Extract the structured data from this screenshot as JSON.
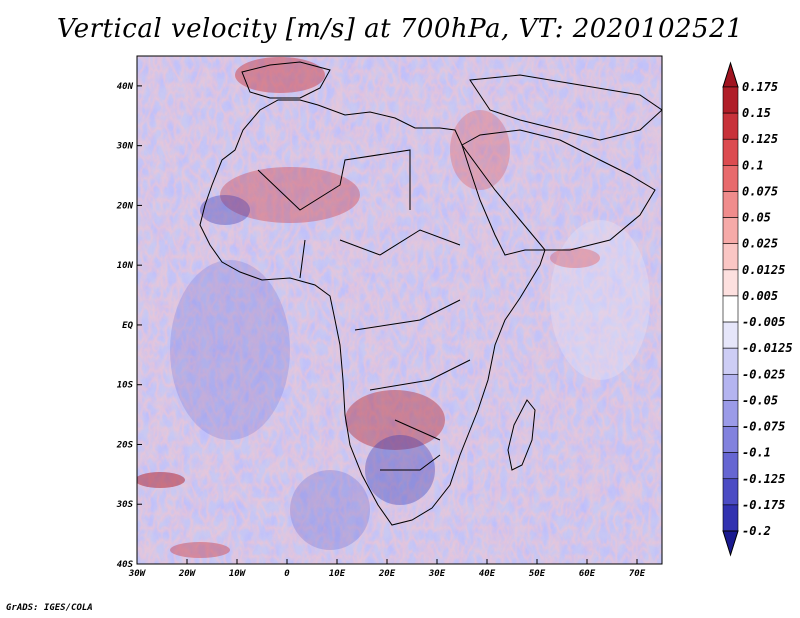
{
  "title": "Vertical velocity [m/s] at 700hPa, VT: 2020102521",
  "footer": "GrADS: IGES/COLA",
  "map": {
    "lon_range": [
      -30,
      75
    ],
    "lat_range": [
      -40,
      45
    ],
    "lon_ticks": [
      {
        "value": -30,
        "label": "30W"
      },
      {
        "value": -20,
        "label": "20W"
      },
      {
        "value": -10,
        "label": "10W"
      },
      {
        "value": 0,
        "label": "0"
      },
      {
        "value": 10,
        "label": "10E"
      },
      {
        "value": 20,
        "label": "20E"
      },
      {
        "value": 30,
        "label": "30E"
      },
      {
        "value": 40,
        "label": "40E"
      },
      {
        "value": 50,
        "label": "50E"
      },
      {
        "value": 60,
        "label": "60E"
      },
      {
        "value": 70,
        "label": "70E"
      }
    ],
    "lat_ticks": [
      {
        "value": 40,
        "label": "40N"
      },
      {
        "value": 30,
        "label": "30N"
      },
      {
        "value": 20,
        "label": "20N"
      },
      {
        "value": 10,
        "label": "10N"
      },
      {
        "value": 0,
        "label": "EQ"
      },
      {
        "value": -10,
        "label": "10S"
      },
      {
        "value": -20,
        "label": "20S"
      },
      {
        "value": -30,
        "label": "30S"
      },
      {
        "value": -40,
        "label": "40S"
      }
    ]
  },
  "colorbar": {
    "levels": [
      {
        "label": "0.175",
        "color": "#b01e28"
      },
      {
        "label": "0.15",
        "color": "#c8323a"
      },
      {
        "label": "0.125",
        "color": "#dc4b50"
      },
      {
        "label": "0.1",
        "color": "#e86a6c"
      },
      {
        "label": "0.075",
        "color": "#f08c8c"
      },
      {
        "label": "0.05",
        "color": "#f6aaa8"
      },
      {
        "label": "0.025",
        "color": "#fac6c4"
      },
      {
        "label": "0.0125",
        "color": "#fde0df"
      },
      {
        "label": "0.005",
        "color": "#ffffff"
      },
      {
        "label": "-0.005",
        "color": "#e6e6fa"
      },
      {
        "label": "-0.0125",
        "color": "#cdcdf5"
      },
      {
        "label": "-0.025",
        "color": "#b4b4f0"
      },
      {
        "label": "-0.05",
        "color": "#9b9be8"
      },
      {
        "label": "-0.075",
        "color": "#8282de"
      },
      {
        "label": "-0.1",
        "color": "#6666d2"
      },
      {
        "label": "-0.125",
        "color": "#4c4cc4"
      },
      {
        "label": "-0.175",
        "color": "#3232b0"
      },
      {
        "label": "-0.2",
        "color": "#1e1e96"
      }
    ],
    "top_color": "#a01420",
    "bottom_color": "#1a1a90"
  }
}
